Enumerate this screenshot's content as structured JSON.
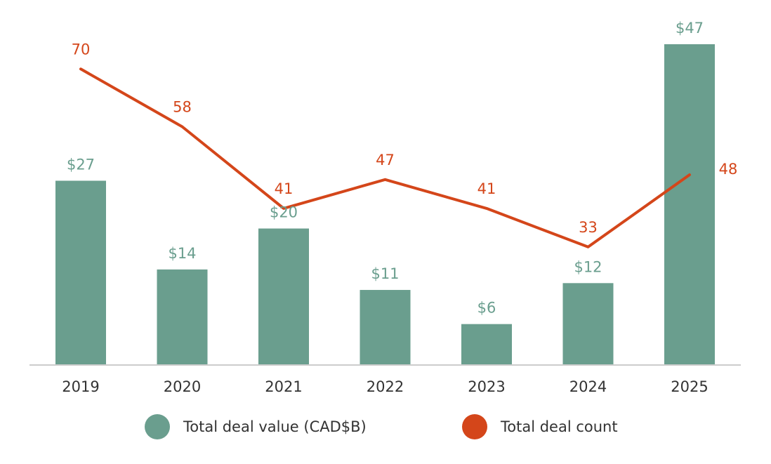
{
  "chart_data": {
    "type": "bar",
    "categories": [
      "2019",
      "2020",
      "2021",
      "2022",
      "2023",
      "2024",
      "2025"
    ],
    "series": [
      {
        "name": "Total deal value (CAD$B)",
        "type": "bar",
        "values": [
          27,
          14,
          20,
          11,
          6,
          12,
          47
        ],
        "labels": [
          "$27",
          "$14",
          "$20",
          "$11",
          "$6",
          "$12",
          "$47"
        ],
        "color": "#6a9e8e"
      },
      {
        "name": "Total deal count",
        "type": "line",
        "values": [
          70,
          58,
          41,
          47,
          41,
          33,
          48
        ],
        "labels": [
          "70",
          "58",
          "41",
          "47",
          "41",
          "33",
          "48"
        ],
        "color": "#d4461a"
      }
    ],
    "legend_position": "bottom",
    "grid": false,
    "axis_color": "#cccccc"
  }
}
